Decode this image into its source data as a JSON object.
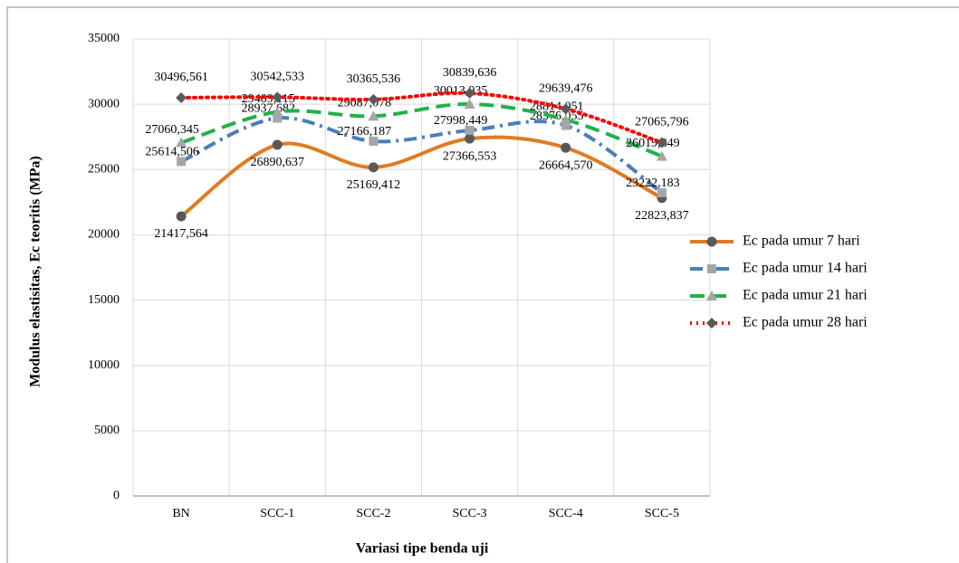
{
  "chart_data": {
    "type": "line",
    "y_label": "Modulus elastisitas, Ec teoritis (MPa)",
    "x_label": "Variasi tipe benda uji",
    "categories": [
      "BN",
      "SCC-1",
      "SCC-2",
      "SCC-3",
      "SCC-4",
      "SCC-5"
    ],
    "ylim": [
      0,
      35000
    ],
    "yticks": [
      0,
      5000,
      10000,
      15000,
      20000,
      25000,
      30000,
      35000
    ],
    "grid": true,
    "legend": "right",
    "series": [
      {
        "name": "Ec pada umur 7 hari",
        "color": "#e07b24",
        "marker": "circle",
        "marker_color": "#595959",
        "line_style": "solid",
        "values": [
          21417.564,
          26890.637,
          25169.412,
          27366.553,
          26664.57,
          22823.837
        ],
        "value_labels": [
          "21417,564",
          "26890,637",
          "25169,412",
          "27366,553",
          "26664,570",
          "22823,837"
        ]
      },
      {
        "name": "Ec pada umur 14 hari",
        "color": "#4a7ebb",
        "marker": "square",
        "marker_color": "#a6a6a6",
        "line_style": "dash-dot",
        "values": [
          25614.506,
          28937.682,
          27166.187,
          27998.449,
          28376.055,
          23222.183
        ],
        "value_labels": [
          "25614,506",
          "28937,682",
          "27166,187",
          "27998,449",
          "28376,055",
          "23222,183"
        ]
      },
      {
        "name": "Ec pada umur 21 hari",
        "color": "#21b14b",
        "marker": "triangle",
        "marker_color": "#a6a6a6",
        "line_style": "dash",
        "values": [
          27060.345,
          29409.115,
          29087.078,
          30013.935,
          28814.051,
          26019.849
        ],
        "value_labels": [
          "27060,345",
          "29409,115",
          "29087,078",
          "30013,935",
          "28814,051",
          "26019,849"
        ]
      },
      {
        "name": "Ec pada umur 28 hari",
        "color": "#ff0000",
        "marker": "diamond",
        "marker_color": "#595959",
        "line_style": "dot",
        "values": [
          30496.561,
          30542.533,
          30365.536,
          30839.636,
          29639.476,
          27065.796
        ],
        "value_labels": [
          "30496,561",
          "30542,533",
          "30365,536",
          "30839,636",
          "29639,476",
          "27065,796"
        ]
      }
    ]
  }
}
